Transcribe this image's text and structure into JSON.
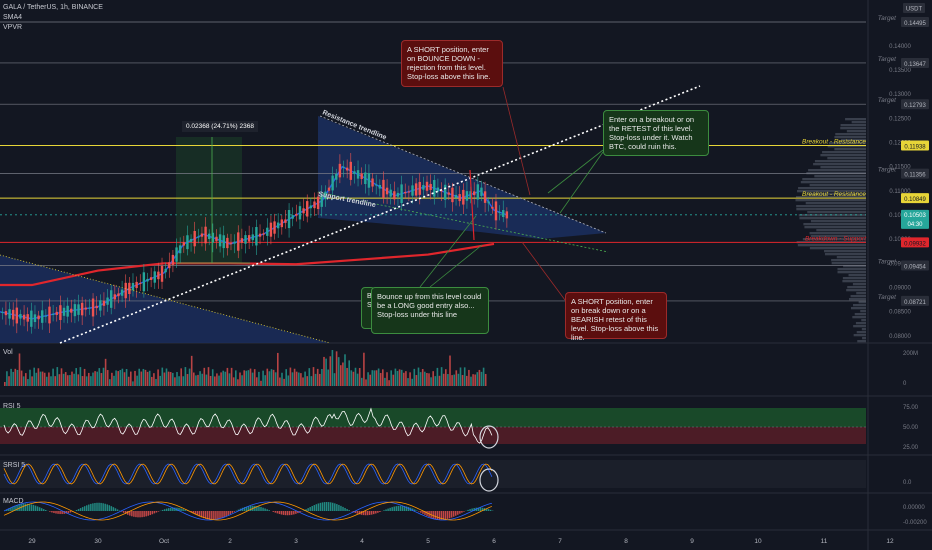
{
  "header": {
    "symbol_line": "GALA / TetherUS, 1h, BINANCE",
    "indicators": [
      "SMA4",
      "VPVR"
    ],
    "currency_badge": "USDT",
    "vol_label": "Vol",
    "rsi_label": "RSI 5",
    "srsi_label": "SRSI 5",
    "macd_label": "MACD"
  },
  "measure_label": "0.02368 (24.71%) 2368",
  "annotations": {
    "resistance_trendline": "Resistance trendline",
    "support_trendline": "Support trendline"
  },
  "notes": {
    "short_bounce": "A SHORT position, enter on BOUNCE DOWN - rejection from this level. Stop-loss above this line.",
    "breakout_retest": "Enter on a breakout or on the RETEST of this level. Stop-loss under it. Watch BTC, could ruin this.",
    "long_bounce": "Bounce up from this level could be a LONG good entry also... Stop-loss under this line",
    "partial_note": "B\nS",
    "short_breakdown": "A SHORT position, enter on break down or on a BEARISH retest of this level. Stop-loss above this line."
  },
  "levels": [
    {
      "price": 0.14495,
      "label": "Target",
      "tag": "0.14495",
      "color": "#787b86"
    },
    {
      "price": 0.13647,
      "label": "Target",
      "tag": "0.13647",
      "color": "#787b86"
    },
    {
      "price": 0.12793,
      "label": "Target",
      "tag": "0.12793",
      "color": "#787b86"
    },
    {
      "price": 0.11938,
      "label": "Breakout - Resistance",
      "tag": "0.11938",
      "color": "#e7d538"
    },
    {
      "price": 0.11356,
      "label": "Target",
      "tag": "0.11356",
      "color": "#787b86"
    },
    {
      "price": 0.10849,
      "label": "Breakout - Resistance",
      "tag": "0.10849",
      "color": "#e7d538"
    },
    {
      "price": 0.09932,
      "label": "Breakdown - Support",
      "tag": "0.09932",
      "color": "#e0262c"
    },
    {
      "price": 0.09454,
      "label": "Target",
      "tag": "0.09454",
      "color": "#787b86"
    },
    {
      "price": 0.08721,
      "label": "Target",
      "tag": "0.08721",
      "color": "#787b86"
    }
  ],
  "last_price": {
    "tag": "0.10503",
    "countdown": "04:30"
  },
  "chart_data": {
    "type": "line",
    "title": "GALA / TetherUS, 1h, BINANCE",
    "x_ticks": [
      "29",
      "30",
      "Oct",
      "2",
      "3",
      "4",
      "5",
      "6",
      "7",
      "8",
      "9",
      "10",
      "11",
      "12"
    ],
    "price_axis_ticks": [
      "0.14000",
      "0.13500",
      "0.13000",
      "0.12500",
      "0.12000",
      "0.11500",
      "0.11000",
      "0.10500",
      "0.10000",
      "0.09500",
      "0.09000",
      "0.08500",
      "0.08000"
    ],
    "ylim": [
      0.0785,
      0.1495
    ],
    "price_series": [
      {
        "x": 28.0,
        "y": 0.087
      },
      {
        "x": 28.5,
        "y": 0.085
      },
      {
        "x": 29.0,
        "y": 0.0835
      },
      {
        "x": 29.5,
        "y": 0.085
      },
      {
        "x": 30.0,
        "y": 0.086
      },
      {
        "x": 30.5,
        "y": 0.09
      },
      {
        "x": 31.0,
        "y": 0.093
      },
      {
        "x": 31.3,
        "y": 0.099
      },
      {
        "x": 31.6,
        "y": 0.101
      },
      {
        "x": 32.0,
        "y": 0.099
      },
      {
        "x": 32.5,
        "y": 0.101
      },
      {
        "x": 33.0,
        "y": 0.105
      },
      {
        "x": 33.4,
        "y": 0.108
      },
      {
        "x": 33.7,
        "y": 0.115
      },
      {
        "x": 34.0,
        "y": 0.113
      },
      {
        "x": 34.5,
        "y": 0.109
      },
      {
        "x": 35.0,
        "y": 0.111
      },
      {
        "x": 35.5,
        "y": 0.1085
      },
      {
        "x": 35.8,
        "y": 0.11
      },
      {
        "x": 36.0,
        "y": 0.106
      },
      {
        "x": 36.2,
        "y": 0.105
      }
    ],
    "sma_series": [
      {
        "x": 27.0,
        "y": 0.0915
      },
      {
        "x": 28.0,
        "y": 0.0905
      },
      {
        "x": 29.0,
        "y": 0.0905
      },
      {
        "x": 30.0,
        "y": 0.0935
      },
      {
        "x": 31.0,
        "y": 0.095
      },
      {
        "x": 32.0,
        "y": 0.095
      },
      {
        "x": 33.0,
        "y": 0.0948
      },
      {
        "x": 34.0,
        "y": 0.0958
      },
      {
        "x": 35.0,
        "y": 0.0968
      },
      {
        "x": 36.0,
        "y": 0.099
      }
    ],
    "rsi_axis_ticks": [
      "75.00",
      "50.00",
      "25.00"
    ],
    "srsi_axis_ticks": [
      "0.0"
    ],
    "macd_axis_ticks": [
      "0.00000",
      "-0.00200"
    ],
    "volume_axis_ticks": [
      "200M",
      "0"
    ]
  }
}
